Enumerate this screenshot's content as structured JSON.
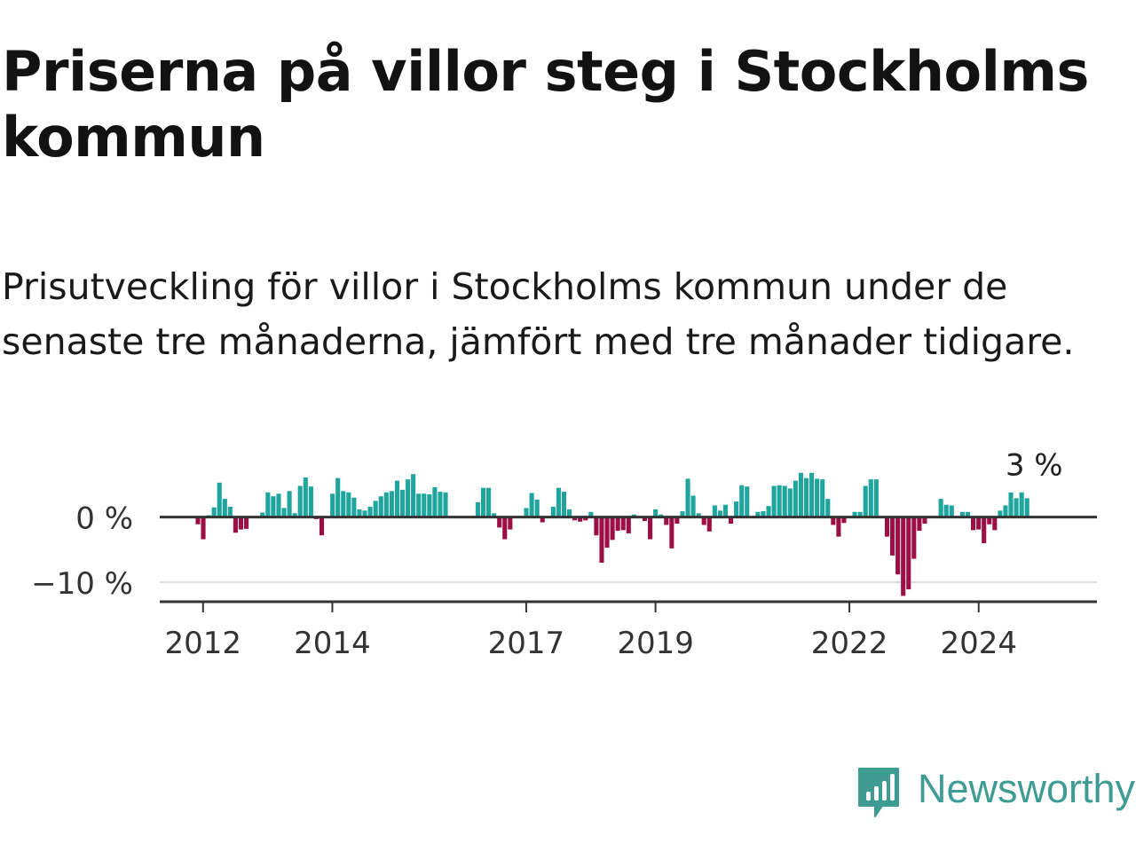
{
  "title": "Priserna på villor steg i Stockholms kommun",
  "subtitle": "Prisutveckling för villor i Stockholms kommun under de senaste tre månaderna, jämfört med tre månader tidigare.",
  "brand": {
    "name": "Newsworthy",
    "icon": "newsworthy-logo-icon"
  },
  "colors": {
    "positive": "#1fa59d",
    "negative": "#9c0f45",
    "axis": "#333333",
    "grid": "#dddddd",
    "text": "#121212",
    "brand": "#3f9c94"
  },
  "chart_data": {
    "type": "bar",
    "ylim": [
      -13,
      8
    ],
    "grid": "horizontal",
    "y_ticks": [
      {
        "value": 0,
        "label": "0 %"
      },
      {
        "value": -10,
        "label": "−10 %"
      }
    ],
    "x_ticks": [
      "2012",
      "2014",
      "2017",
      "2019",
      "2022",
      "2024"
    ],
    "x_tick_positions": [
      2012,
      2014,
      2017,
      2019,
      2022,
      2024
    ],
    "x_range": [
      2011.33,
      2025.83
    ],
    "start": 2011.92,
    "step": 0.0833,
    "series": [
      {
        "values": [
          -1.1,
          -3.4,
          0.3,
          1.5,
          5.3,
          2.8,
          1.6,
          -2.4,
          -1.9,
          -1.8,
          0.0,
          0.0,
          0.7,
          3.8,
          3.2,
          3.6,
          1.4,
          4.0,
          0.6,
          4.8,
          6.1,
          4.7,
          -0.3,
          -2.8,
          0.0,
          3.6,
          6.0,
          4.0,
          3.8,
          3.0,
          1.2,
          1.0,
          1.6,
          2.5,
          3.2,
          3.8,
          4.0,
          5.6,
          4.2,
          5.8,
          6.6,
          3.6,
          3.6,
          3.5,
          4.6,
          3.9,
          3.8,
          0.0,
          0.0,
          0.0,
          0.0,
          0.0,
          2.3,
          4.5,
          4.5,
          0.6,
          -1.6,
          -3.4,
          -1.9,
          0.0,
          0.0,
          1.4,
          3.7,
          2.7,
          -0.8,
          0.0,
          1.6,
          4.5,
          3.9,
          1.2,
          -0.5,
          -0.7,
          -0.5,
          0.8,
          -2.8,
          -7.0,
          -4.7,
          -3.5,
          -2.1,
          -2.0,
          -2.5,
          0.4,
          0.0,
          -0.6,
          -3.4,
          1.2,
          0.4,
          -1.2,
          -4.8,
          -1.0,
          0.9,
          5.9,
          3.3,
          0.6,
          -1.2,
          -2.2,
          1.8,
          1.0,
          1.9,
          -1.0,
          2.4,
          4.9,
          4.7,
          0.0,
          0.8,
          0.9,
          1.7,
          4.8,
          4.9,
          4.8,
          4.4,
          5.6,
          6.8,
          6.0,
          6.8,
          5.9,
          5.8,
          2.8,
          -1.2,
          -3.0,
          -0.9,
          0.0,
          0.8,
          0.8,
          4.8,
          5.8,
          5.8,
          0.0,
          -3.0,
          -5.9,
          -8.8,
          -12.1,
          -11.1,
          -6.4,
          -2.1,
          -1.0,
          0.0,
          0.0,
          2.8,
          1.9,
          1.8,
          0.0,
          0.8,
          0.8,
          -2.0,
          -1.9,
          -4.0,
          -1.1,
          -2.0,
          1.0,
          1.8,
          3.8,
          2.9,
          3.8,
          2.9
        ]
      }
    ],
    "data_labels": [
      {
        "text": "3 %",
        "position": "last-bar"
      }
    ]
  }
}
